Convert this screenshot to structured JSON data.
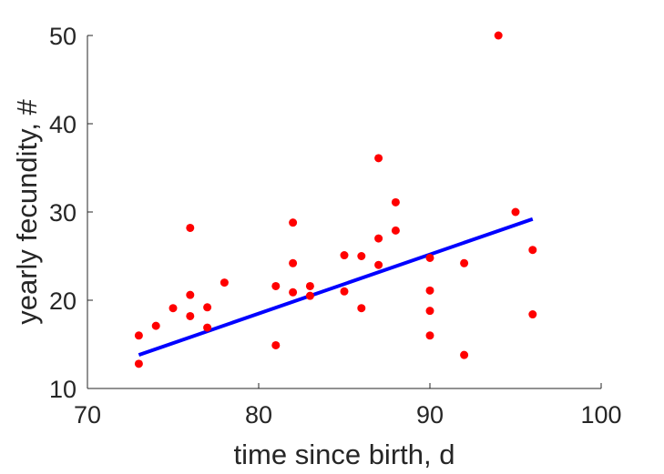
{
  "chart_data": {
    "type": "scatter",
    "title": "",
    "xlabel": "time since birth, d",
    "ylabel": "yearly fecundity, #",
    "xlim": [
      70,
      100
    ],
    "ylim": [
      10,
      50
    ],
    "xticks": [
      70,
      80,
      90,
      100
    ],
    "yticks": [
      10,
      20,
      30,
      40,
      50
    ],
    "grid": false,
    "legend": "none",
    "series": [
      {
        "kind": "scatter",
        "color": "#ff0000",
        "points": [
          [
            73,
            16.0
          ],
          [
            73,
            12.8
          ],
          [
            74,
            17.1
          ],
          [
            75,
            19.1
          ],
          [
            76,
            28.2
          ],
          [
            76,
            20.6
          ],
          [
            76,
            18.2
          ],
          [
            77,
            19.2
          ],
          [
            77,
            16.9
          ],
          [
            78,
            22.0
          ],
          [
            81,
            21.6
          ],
          [
            81,
            14.9
          ],
          [
            82,
            28.8
          ],
          [
            82,
            24.2
          ],
          [
            82,
            20.9
          ],
          [
            83,
            21.6
          ],
          [
            83,
            20.5
          ],
          [
            85,
            25.1
          ],
          [
            85,
            21.0
          ],
          [
            86,
            25.0
          ],
          [
            86,
            19.1
          ],
          [
            87,
            36.1
          ],
          [
            87,
            27.0
          ],
          [
            87,
            24.0
          ],
          [
            88,
            31.1
          ],
          [
            88,
            27.9
          ],
          [
            90,
            24.8
          ],
          [
            90,
            21.1
          ],
          [
            90,
            18.8
          ],
          [
            90,
            16.0
          ],
          [
            92,
            24.2
          ],
          [
            92,
            13.8
          ],
          [
            94,
            50.0
          ],
          [
            95,
            30.0
          ],
          [
            96,
            25.7
          ],
          [
            96,
            18.4
          ]
        ]
      },
      {
        "kind": "line",
        "color": "#0000ff",
        "points": [
          [
            73,
            13.8
          ],
          [
            96,
            29.2
          ]
        ]
      }
    ]
  }
}
